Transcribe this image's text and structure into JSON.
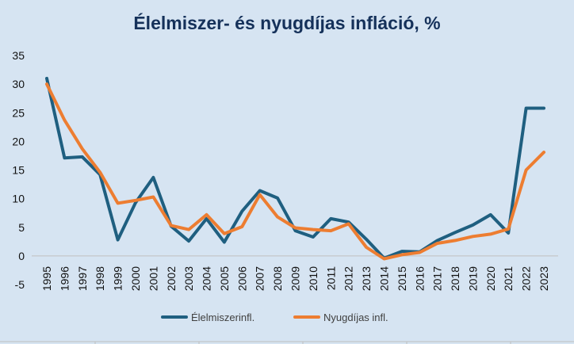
{
  "chart_data": {
    "type": "line",
    "title": "Élelmiszer- és nyugdíjas infláció, %",
    "xlabel": "",
    "ylabel": "",
    "ylim": [
      -5,
      35
    ],
    "yticks": [
      35,
      30,
      25,
      20,
      15,
      10,
      5,
      0,
      -5
    ],
    "grid": false,
    "legend_position": "bottom",
    "categories": [
      "1995",
      "1996",
      "1997",
      "1998",
      "1999",
      "2000",
      "2001",
      "2002",
      "2003",
      "2004",
      "2005",
      "2006",
      "2007",
      "2008",
      "2009",
      "2010",
      "2011",
      "2012",
      "2013",
      "2014",
      "2015",
      "2016",
      "2017",
      "2018",
      "2019",
      "2020",
      "2021",
      "2022",
      "2023"
    ],
    "series": [
      {
        "name": "Élelmiszerinfl.",
        "color": "#1f5f80",
        "values": [
          31.0,
          17.1,
          17.3,
          14.2,
          2.8,
          9.3,
          13.7,
          5.2,
          2.6,
          6.5,
          2.4,
          7.8,
          11.4,
          10.1,
          4.4,
          3.3,
          6.5,
          5.9,
          2.9,
          -0.4,
          0.8,
          0.7,
          2.7,
          4.1,
          5.4,
          7.2,
          4.0,
          25.8,
          25.8
        ]
      },
      {
        "name": "Nyugdíjas infl.",
        "color": "#ed7d31",
        "values": [
          30.0,
          23.7,
          18.7,
          14.6,
          9.2,
          9.7,
          10.3,
          5.3,
          4.6,
          7.2,
          3.9,
          5.1,
          10.7,
          6.8,
          4.9,
          4.6,
          4.4,
          5.6,
          1.5,
          -0.5,
          0.2,
          0.6,
          2.2,
          2.7,
          3.4,
          3.8,
          4.7,
          15.0,
          18.1
        ]
      }
    ]
  }
}
